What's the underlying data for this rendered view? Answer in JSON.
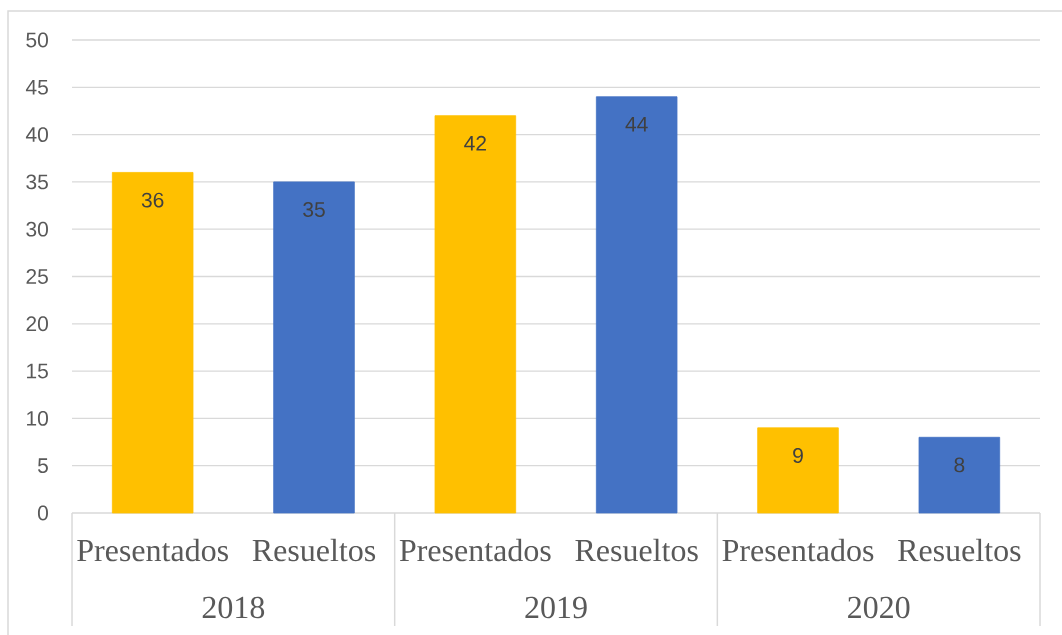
{
  "chart_data": {
    "type": "bar",
    "categories": [
      "2018",
      "2019",
      "2020"
    ],
    "series": [
      {
        "name": "Presentados",
        "color": "#ffc000",
        "values": [
          36,
          42,
          9
        ]
      },
      {
        "name": "Resueltos",
        "color": "#4472c4",
        "values": [
          35,
          44,
          8
        ]
      }
    ],
    "ylim": [
      0,
      50
    ],
    "yticks": [
      0,
      5,
      10,
      15,
      20,
      25,
      30,
      35,
      40,
      45,
      50
    ],
    "grid": "y",
    "data_labels": true
  }
}
